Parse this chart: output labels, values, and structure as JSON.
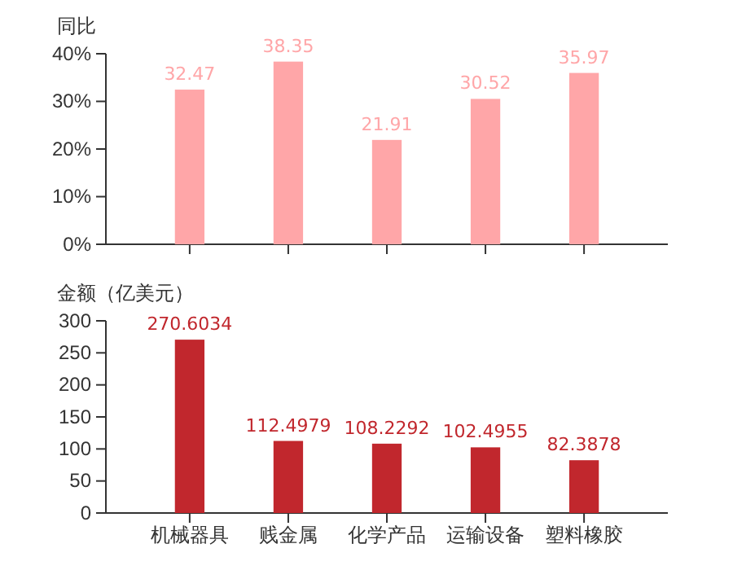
{
  "chart_data": [
    {
      "type": "bar",
      "ylabel": "同比",
      "categories": [
        null,
        null,
        null,
        null,
        null
      ],
      "values": [
        32.47,
        38.35,
        21.91,
        30.52,
        35.97
      ],
      "color": "#ffa6a8",
      "ylim": [
        0,
        40
      ],
      "yticks": [
        {
          "value": 0,
          "label": "0%"
        },
        {
          "value": 10,
          "label": "10%"
        },
        {
          "value": 20,
          "label": "20%"
        },
        {
          "value": 30,
          "label": "30%"
        },
        {
          "value": 40,
          "label": "40%"
        }
      ],
      "data_labels": true,
      "tick_labels": "y"
    },
    {
      "type": "bar",
      "ylabel": "金额（亿美元）",
      "categories": [
        "机械器具",
        "贱金属",
        "化学产品",
        "运输设备",
        "塑料橡胶"
      ],
      "values": [
        270.6034,
        112.4979,
        108.2292,
        102.4955,
        82.3878
      ],
      "color": "#c1272d",
      "ylim": [
        0,
        300
      ],
      "yticks": [
        0,
        50,
        100,
        150,
        200,
        250,
        300
      ],
      "data_labels": true
    }
  ]
}
